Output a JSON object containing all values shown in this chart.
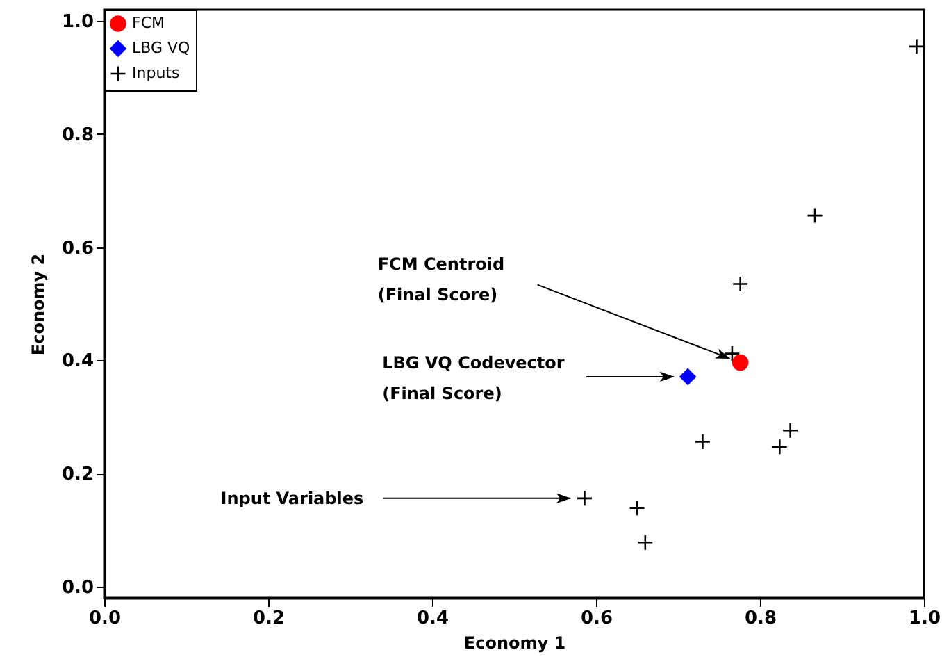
{
  "chart_data": {
    "type": "scatter",
    "xlabel": "Economy 1",
    "ylabel": "Economy 2",
    "xlim": [
      0,
      1
    ],
    "ylim": [
      -0.02,
      1.02
    ],
    "xticks": [
      {
        "value": 0,
        "label": "0.0"
      },
      0.2,
      0.4,
      0.6,
      0.8,
      {
        "value": 1,
        "label": "1.0"
      }
    ],
    "yticks": [
      {
        "value": 0,
        "label": "0.0"
      },
      0.2,
      0.4,
      0.6,
      0.8,
      {
        "value": 1,
        "label": "1.0"
      }
    ],
    "grid": false,
    "legend": "top left",
    "series": [
      {
        "name": "FCM",
        "color": "#ff0000",
        "marker": "circle",
        "x": [
          0.776
        ],
        "values": [
          0.396
        ]
      },
      {
        "name": "LBG VQ",
        "color": "#0000ff",
        "marker": "diamond",
        "x": [
          0.712
        ],
        "values": [
          0.371
        ]
      },
      {
        "name": "Inputs",
        "color": "#000000",
        "marker": "cross",
        "x": [
          0.991,
          0.867,
          0.776,
          0.766,
          0.73,
          0.837,
          0.824,
          0.586,
          0.65,
          0.66
        ],
        "values": [
          0.955,
          0.656,
          0.535,
          0.412,
          0.256,
          0.276,
          0.247,
          0.156,
          0.139,
          0.078
        ]
      }
    ],
    "annotations": [
      "FCM Centroid\n(Final Score)",
      "LBG VQ Codevector\n(Final Score)",
      "Input Variables"
    ]
  }
}
